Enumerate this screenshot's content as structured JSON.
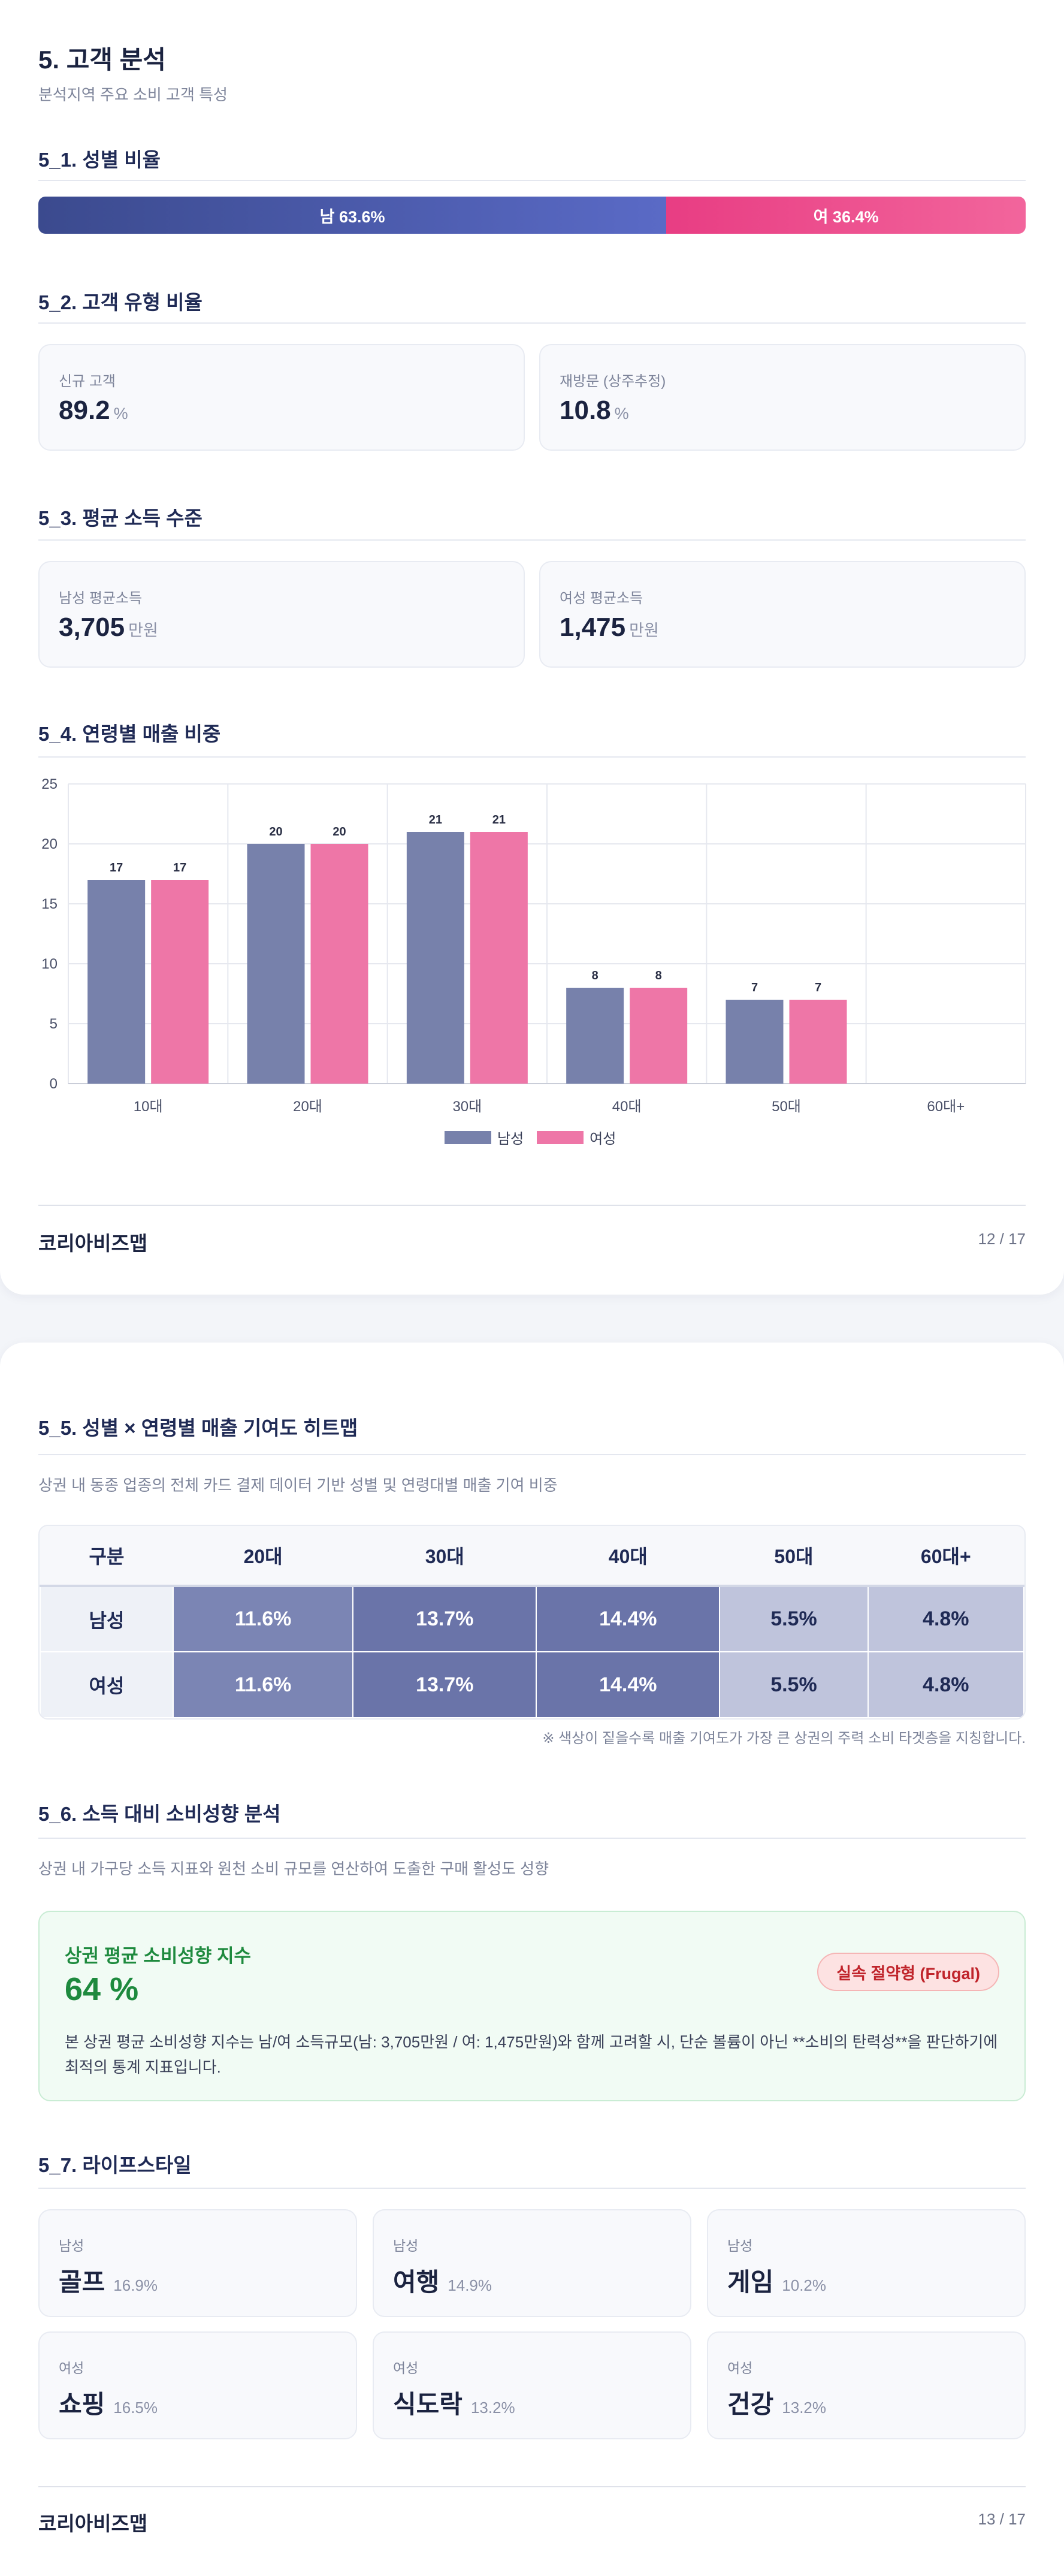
{
  "page1": {
    "title": "5. 고객 분석",
    "subtitle": "분석지역 주요 소비 고객 특성",
    "gender": {
      "title": "5_1. 성별 비율",
      "male_label": "남 63.6%",
      "female_label": "여 36.4%",
      "male_share": 63.6,
      "female_share": 36.4,
      "male_color": "#4a58a8",
      "female_color": "#ec4b8c"
    },
    "customer_type": {
      "title": "5_2. 고객 유형 비율",
      "cards": [
        {
          "label": "신규 고객",
          "value": "89.2",
          "unit": "%"
        },
        {
          "label": "재방문 (상주추정)",
          "value": "10.8",
          "unit": "%"
        }
      ]
    },
    "income": {
      "title": "5_3. 평균 소득 수준",
      "cards": [
        {
          "label": "남성 평균소득",
          "value": "3,705",
          "unit": "만원"
        },
        {
          "label": "여성 평균소득",
          "value": "1,475",
          "unit": "만원"
        }
      ]
    },
    "age_sales_title": "5_4. 연령별 매출 비중",
    "footer": {
      "brand": "코리아비즈맵",
      "page": "12 / 17"
    }
  },
  "chart_data": {
    "type": "bar",
    "categories": [
      "10대",
      "20대",
      "30대",
      "40대",
      "50대",
      "60대+"
    ],
    "series": [
      {
        "name": "남성",
        "values": [
          17,
          20,
          21,
          8,
          7,
          0
        ],
        "color": "#7781ab"
      },
      {
        "name": "여성",
        "values": [
          17,
          20,
          21,
          8,
          7,
          0
        ],
        "color": "#ee76a7"
      }
    ],
    "data_labels": [
      "17",
      "20",
      "21",
      "8",
      "7",
      ""
    ],
    "y_ticks": [
      "0",
      "5",
      "10",
      "15",
      "20",
      "25"
    ],
    "ylim": [
      0,
      25
    ],
    "grid": true,
    "legend": "bottom-center",
    "title": "",
    "xlabel": "",
    "ylabel": ""
  },
  "page2": {
    "heatmap": {
      "title": "5_5. 성별 × 연령별 매출 기여도 히트맵",
      "subtitle": "상권 내 동종 업종의 전체 카드 결제 데이터 기반 성별 및 연령대별 매출 기여 비중",
      "corner": "구분",
      "columns": [
        "20대",
        "30대",
        "40대",
        "50대",
        "60대+"
      ],
      "rows": [
        {
          "label": "남성",
          "values": [
            "11.6%",
            "13.7%",
            "14.4%",
            "5.5%",
            "4.8%"
          ]
        },
        {
          "label": "여성",
          "values": [
            "11.6%",
            "13.7%",
            "14.4%",
            "5.5%",
            "4.8%"
          ]
        }
      ],
      "colors": [
        "#7b85b4",
        "#6a74a9",
        "#6a74a9",
        "#bfc4dc",
        "#bfc4dc"
      ],
      "text_colors": [
        "#ffffff",
        "#ffffff",
        "#ffffff",
        "#1f2a55",
        "#1f2a55"
      ],
      "note": "※ 색상이 짙을수록 매출 기여도가 가장 큰 상권의 주력 소비 타겟층을 지칭합니다."
    },
    "spending": {
      "title": "5_6. 소득 대비 소비성향 분석",
      "subtitle": "상권 내 가구당 소득 지표와 원천 소비 규모를 연산하여 도출한 구매 활성도 성향",
      "box_title": "상권 평균 소비성향 지수",
      "value": "64 %",
      "badge": "실속 절약형 (Frugal)",
      "desc": "본 상권 평균 소비성향 지수는 남/여 소득규모(남: 3,705만원 / 여: 1,475만원)와 함께 고려할 시, 단순 볼륨이 아닌 **소비의 탄력성**을 판단하기에 최적의 통계 지표입니다."
    },
    "lifestyle": {
      "title": "5_7. 라이프스타일",
      "items": [
        {
          "gender": "남성",
          "name": "골프",
          "pct": "16.9%"
        },
        {
          "gender": "남성",
          "name": "여행",
          "pct": "14.9%"
        },
        {
          "gender": "남성",
          "name": "게임",
          "pct": "10.2%"
        },
        {
          "gender": "여성",
          "name": "쇼핑",
          "pct": "16.5%"
        },
        {
          "gender": "여성",
          "name": "식도락",
          "pct": "13.2%"
        },
        {
          "gender": "여성",
          "name": "건강",
          "pct": "13.2%"
        }
      ]
    },
    "footer": {
      "brand": "코리아비즈맵",
      "page": "13 / 17"
    }
  }
}
